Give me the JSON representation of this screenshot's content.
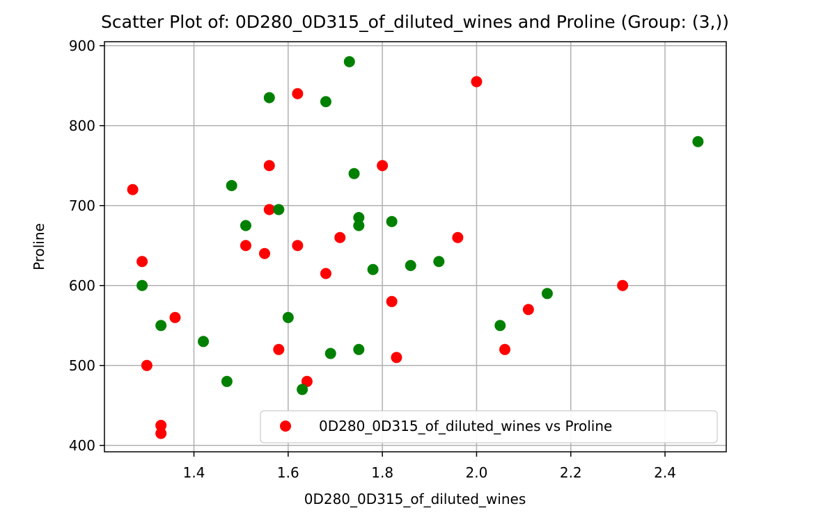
{
  "chart_data": {
    "type": "scatter",
    "title": "Scatter Plot of: 0D280_0D315_of_diluted_wines and Proline (Group: (3,))",
    "xlabel": "0D280_0D315_of_diluted_wines",
    "ylabel": "Proline",
    "xlim": [
      1.21,
      2.53
    ],
    "ylim": [
      392,
      905
    ],
    "xticks": [
      1.4,
      1.6,
      1.8,
      2.0,
      2.2,
      2.4
    ],
    "xtick_labels": [
      "1.4",
      "1.6",
      "1.8",
      "2.0",
      "2.2",
      "2.4"
    ],
    "yticks": [
      400,
      500,
      600,
      700,
      800,
      900
    ],
    "ytick_labels": [
      "400",
      "500",
      "600",
      "700",
      "800",
      "900"
    ],
    "grid": true,
    "legend_position": "lower-right",
    "series": [
      {
        "name": "0D280_0D315_of_diluted_wines vs Proline",
        "color": "#ff0000",
        "points": [
          [
            1.27,
            720
          ],
          [
            1.29,
            630
          ],
          [
            1.3,
            500
          ],
          [
            1.33,
            425
          ],
          [
            1.33,
            415
          ],
          [
            1.36,
            560
          ],
          [
            1.51,
            650
          ],
          [
            1.55,
            640
          ],
          [
            1.56,
            750
          ],
          [
            1.56,
            695
          ],
          [
            1.58,
            520
          ],
          [
            1.62,
            840
          ],
          [
            1.62,
            650
          ],
          [
            1.64,
            480
          ],
          [
            1.68,
            615
          ],
          [
            1.71,
            660
          ],
          [
            1.8,
            750
          ],
          [
            1.82,
            580
          ],
          [
            1.83,
            510
          ],
          [
            1.96,
            660
          ],
          [
            2.0,
            855
          ],
          [
            2.06,
            520
          ],
          [
            2.11,
            570
          ],
          [
            2.31,
            600
          ]
        ]
      },
      {
        "color": "#008000",
        "points": [
          [
            1.29,
            600
          ],
          [
            1.33,
            550
          ],
          [
            1.42,
            530
          ],
          [
            1.47,
            480
          ],
          [
            1.48,
            725
          ],
          [
            1.51,
            675
          ],
          [
            1.56,
            835
          ],
          [
            1.58,
            695
          ],
          [
            1.6,
            560
          ],
          [
            1.63,
            470
          ],
          [
            1.68,
            830
          ],
          [
            1.69,
            515
          ],
          [
            1.73,
            880
          ],
          [
            1.74,
            740
          ],
          [
            1.75,
            685
          ],
          [
            1.75,
            675
          ],
          [
            1.75,
            520
          ],
          [
            1.78,
            620
          ],
          [
            1.82,
            680
          ],
          [
            1.86,
            625
          ],
          [
            1.92,
            630
          ],
          [
            2.05,
            550
          ],
          [
            2.15,
            590
          ],
          [
            2.47,
            780
          ]
        ]
      }
    ]
  }
}
